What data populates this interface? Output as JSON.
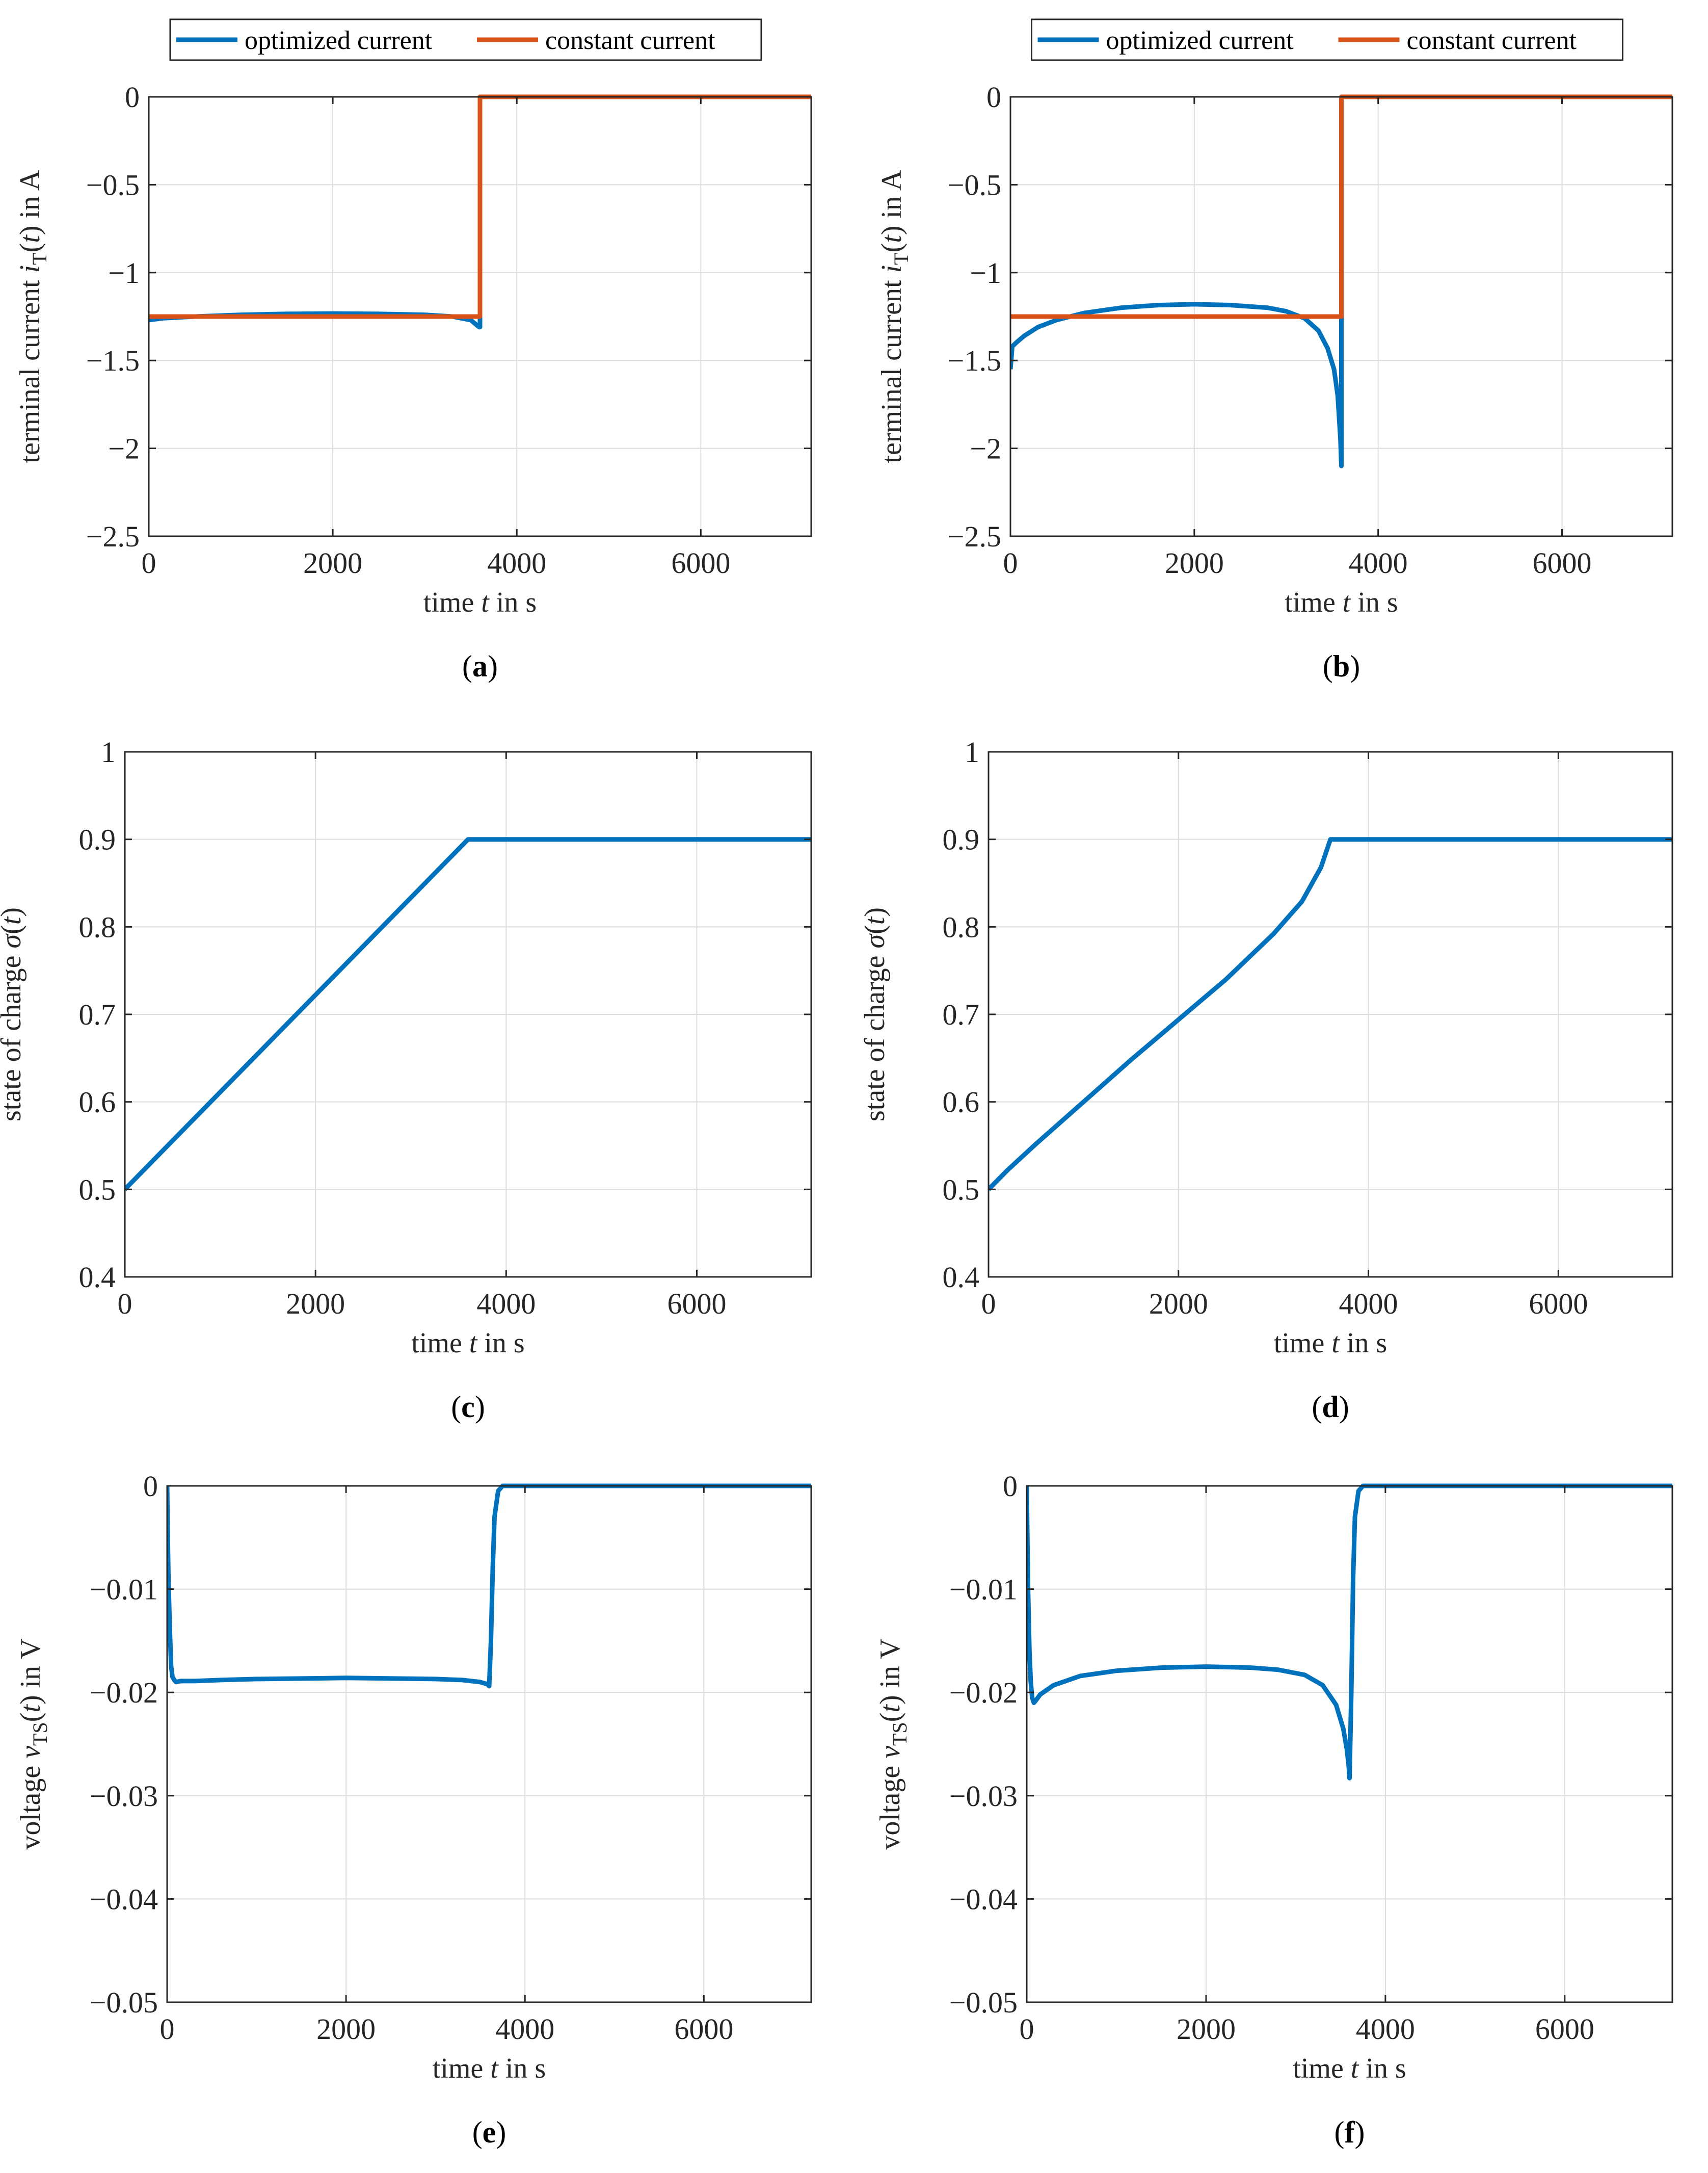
{
  "colors": {
    "optimized": "#0072BD",
    "constant": "#D95319"
  },
  "chart_data": [
    {
      "panel": "(a)",
      "type": "line",
      "xlabel_parts": [
        "time ",
        "t",
        " in s"
      ],
      "ylabel_parts": [
        "terminal current ",
        "i",
        "T",
        "(",
        "t",
        ") in A"
      ],
      "xlim": [
        0,
        7200
      ],
      "ylim": [
        -2.5,
        0
      ],
      "xticks": [
        0,
        2000,
        4000,
        6000
      ],
      "xtick_labels": [
        "0",
        "2000",
        "4000",
        "6000"
      ],
      "yticks": [
        0,
        -0.5,
        -1,
        -1.5,
        -2,
        -2.5
      ],
      "ytick_labels": [
        "0",
        "−0.5",
        "−1",
        "−1.5",
        "−2",
        "−2.5"
      ],
      "grid": true,
      "legend": {
        "position": "top-outside",
        "entries": [
          "optimized current",
          "constant current"
        ]
      },
      "series": [
        {
          "name": "optimized current",
          "color_key": "optimized",
          "x": [
            0,
            150,
            500,
            1000,
            1500,
            2000,
            2500,
            3000,
            3300,
            3500,
            3590,
            3600,
            3600,
            7200
          ],
          "y": [
            -1.27,
            -1.26,
            -1.25,
            -1.24,
            -1.235,
            -1.233,
            -1.235,
            -1.24,
            -1.25,
            -1.27,
            -1.31,
            -1.31,
            0,
            0
          ]
        },
        {
          "name": "constant current",
          "color_key": "constant",
          "x": [
            0,
            3600,
            3600,
            7200
          ],
          "y": [
            -1.25,
            -1.25,
            0,
            0
          ]
        }
      ]
    },
    {
      "panel": "(b)",
      "type": "line",
      "xlabel_parts": [
        "time ",
        "t",
        " in s"
      ],
      "ylabel_parts": [
        "terminal current ",
        "i",
        "T",
        "(",
        "t",
        ") in A"
      ],
      "xlim": [
        0,
        7200
      ],
      "ylim": [
        -2.5,
        0
      ],
      "xticks": [
        0,
        2000,
        4000,
        6000
      ],
      "xtick_labels": [
        "0",
        "2000",
        "4000",
        "6000"
      ],
      "yticks": [
        0,
        -0.5,
        -1,
        -1.5,
        -2,
        -2.5
      ],
      "ytick_labels": [
        "0",
        "−0.5",
        "−1",
        "−1.5",
        "−2",
        "−2.5"
      ],
      "grid": true,
      "legend": {
        "position": "top-outside",
        "entries": [
          "optimized current",
          "constant current"
        ]
      },
      "series": [
        {
          "name": "optimized current",
          "color_key": "optimized",
          "x": [
            0,
            20,
            60,
            150,
            300,
            500,
            800,
            1200,
            1600,
            2000,
            2400,
            2800,
            3000,
            3200,
            3350,
            3450,
            3520,
            3560,
            3590,
            3600,
            3600,
            7200
          ],
          "y": [
            -1.55,
            -1.42,
            -1.4,
            -1.36,
            -1.31,
            -1.27,
            -1.23,
            -1.2,
            -1.185,
            -1.18,
            -1.185,
            -1.2,
            -1.22,
            -1.26,
            -1.33,
            -1.43,
            -1.55,
            -1.7,
            -1.95,
            -2.1,
            0,
            0
          ]
        },
        {
          "name": "constant current",
          "color_key": "constant",
          "x": [
            0,
            3600,
            3600,
            7200
          ],
          "y": [
            -1.25,
            -1.25,
            0,
            0
          ]
        }
      ]
    },
    {
      "panel": "(c)",
      "type": "line",
      "xlabel_parts": [
        "time ",
        "t",
        " in s"
      ],
      "ylabel_parts": [
        "state of charge ",
        "σ",
        "(",
        "t",
        ")"
      ],
      "xlim": [
        0,
        7200
      ],
      "ylim": [
        0.4,
        1
      ],
      "xticks": [
        0,
        2000,
        4000,
        6000
      ],
      "xtick_labels": [
        "0",
        "2000",
        "4000",
        "6000"
      ],
      "yticks": [
        0.4,
        0.5,
        0.6,
        0.7,
        0.8,
        0.9,
        1
      ],
      "ytick_labels": [
        "0.4",
        "0.5",
        "0.6",
        "0.7",
        "0.8",
        "0.9",
        "1"
      ],
      "grid": true,
      "series": [
        {
          "name": "state of charge",
          "color_key": "optimized",
          "x": [
            0,
            3600,
            7200
          ],
          "y": [
            0.5,
            0.9,
            0.9
          ]
        }
      ]
    },
    {
      "panel": "(d)",
      "type": "line",
      "xlabel_parts": [
        "time ",
        "t",
        " in s"
      ],
      "ylabel_parts": [
        "state of charge ",
        "σ",
        "(",
        "t",
        ")"
      ],
      "xlim": [
        0,
        7200
      ],
      "ylim": [
        0.4,
        1
      ],
      "xticks": [
        0,
        2000,
        4000,
        6000
      ],
      "xtick_labels": [
        "0",
        "2000",
        "4000",
        "6000"
      ],
      "yticks": [
        0.4,
        0.5,
        0.6,
        0.7,
        0.8,
        0.9,
        1
      ],
      "ytick_labels": [
        "0.4",
        "0.5",
        "0.6",
        "0.7",
        "0.8",
        "0.9",
        "1"
      ],
      "grid": true,
      "series": [
        {
          "name": "state of charge",
          "color_key": "optimized",
          "x": [
            0,
            200,
            500,
            1000,
            1500,
            2000,
            2500,
            3000,
            3300,
            3500,
            3600,
            7200
          ],
          "y": [
            0.5,
            0.522,
            0.552,
            0.6,
            0.648,
            0.694,
            0.74,
            0.792,
            0.829,
            0.868,
            0.9,
            0.9
          ]
        }
      ]
    },
    {
      "panel": "(e)",
      "type": "line",
      "xlabel_parts": [
        "time ",
        "t",
        " in s"
      ],
      "ylabel_parts": [
        "voltage ",
        "v",
        "TS",
        "(",
        "t",
        ") in V"
      ],
      "xlim": [
        0,
        7200
      ],
      "ylim": [
        -0.05,
        0
      ],
      "xticks": [
        0,
        2000,
        4000,
        6000
      ],
      "xtick_labels": [
        "0",
        "2000",
        "4000",
        "6000"
      ],
      "yticks": [
        0,
        -0.01,
        -0.02,
        -0.03,
        -0.04,
        -0.05
      ],
      "ytick_labels": [
        "0",
        "−0.01",
        "−0.02",
        "−0.03",
        "−0.04",
        "−0.05"
      ],
      "grid": true,
      "series": [
        {
          "name": "voltage",
          "color_key": "optimized",
          "x": [
            0,
            5,
            15,
            30,
            45,
            60,
            80,
            100,
            150,
            300,
            600,
            1000,
            2000,
            3000,
            3300,
            3500,
            3580,
            3600,
            3620,
            3640,
            3660,
            3700,
            3750,
            7200
          ],
          "y": [
            0,
            -0.004,
            -0.009,
            -0.014,
            -0.0175,
            -0.0185,
            -0.0188,
            -0.019,
            -0.0189,
            -0.0189,
            -0.0188,
            -0.0187,
            -0.0186,
            -0.0187,
            -0.0188,
            -0.019,
            -0.0192,
            -0.0194,
            -0.015,
            -0.008,
            -0.003,
            -0.0005,
            0,
            0
          ]
        }
      ]
    },
    {
      "panel": "(f)",
      "type": "line",
      "xlabel_parts": [
        "time ",
        "t",
        " in s"
      ],
      "ylabel_parts": [
        "voltage ",
        "v",
        "TS",
        "(",
        "t",
        ") in V"
      ],
      "xlim": [
        0,
        7200
      ],
      "ylim": [
        -0.05,
        0
      ],
      "xticks": [
        0,
        2000,
        4000,
        6000
      ],
      "xtick_labels": [
        "0",
        "2000",
        "4000",
        "6000"
      ],
      "yticks": [
        0,
        -0.01,
        -0.02,
        -0.03,
        -0.04,
        -0.05
      ],
      "ytick_labels": [
        "0",
        "−0.01",
        "−0.02",
        "−0.03",
        "−0.04",
        "−0.05"
      ],
      "grid": true,
      "series": [
        {
          "name": "voltage",
          "color_key": "optimized",
          "x": [
            0,
            5,
            15,
            30,
            45,
            60,
            80,
            100,
            150,
            300,
            600,
            1000,
            1500,
            2000,
            2500,
            2800,
            3100,
            3300,
            3450,
            3530,
            3570,
            3590,
            3600,
            3620,
            3640,
            3660,
            3700,
            3750,
            7200
          ],
          "y": [
            0,
            -0.004,
            -0.01,
            -0.016,
            -0.019,
            -0.0205,
            -0.021,
            -0.0208,
            -0.0202,
            -0.0193,
            -0.0184,
            -0.0179,
            -0.0176,
            -0.0175,
            -0.0176,
            -0.0178,
            -0.0183,
            -0.0193,
            -0.0212,
            -0.0235,
            -0.0255,
            -0.027,
            -0.0283,
            -0.02,
            -0.009,
            -0.003,
            -0.0005,
            0,
            0
          ]
        }
      ]
    }
  ]
}
